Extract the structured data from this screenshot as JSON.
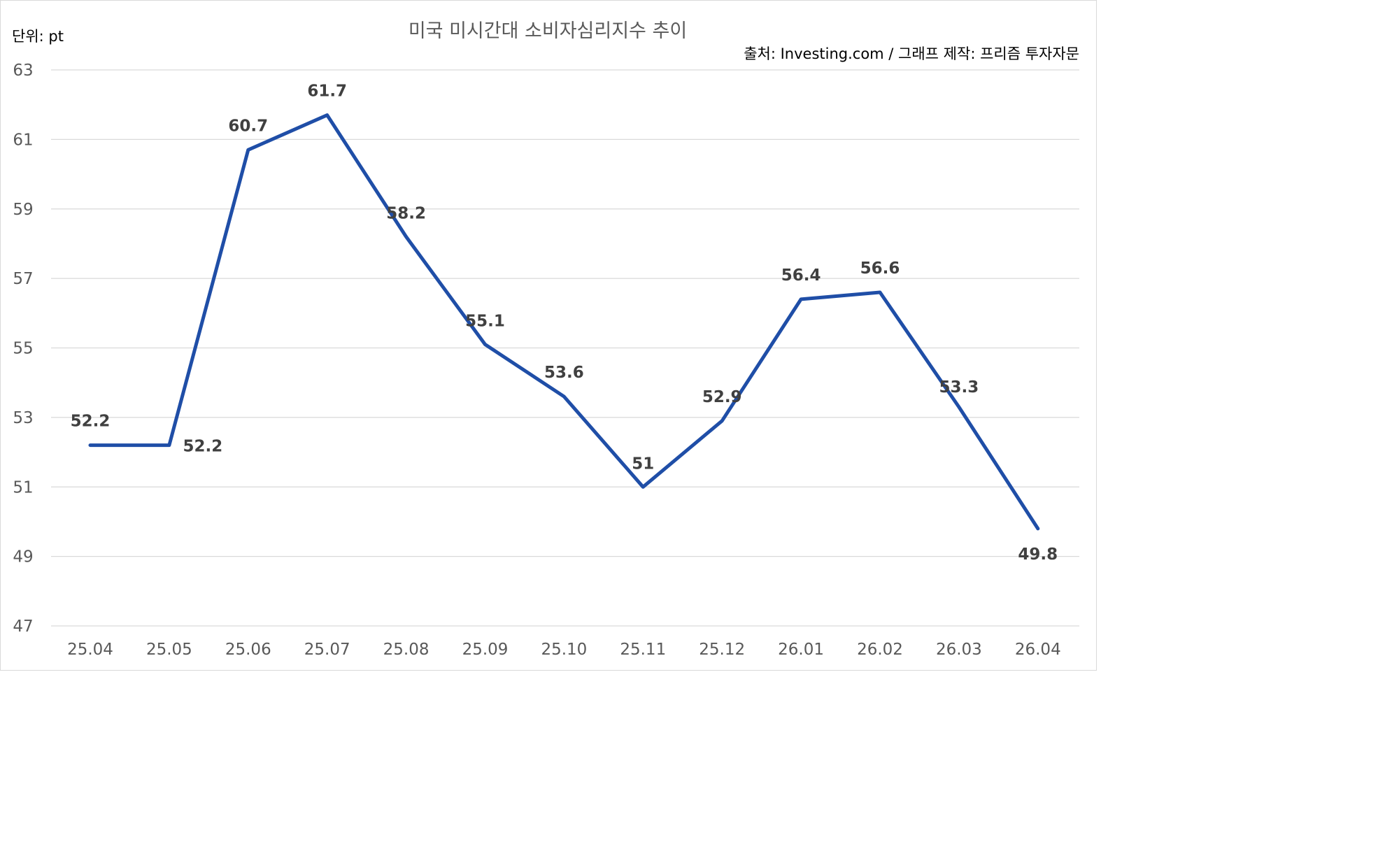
{
  "chart_data": {
    "type": "line",
    "title": "미국 미시간대 소비자심리지수 추이",
    "unit_label": "단위: pt",
    "source": "출처: Investing.com / 그래프 제작: 프리즘 투자자문",
    "categories": [
      "25.04",
      "25.05",
      "25.06",
      "25.07",
      "25.08",
      "25.09",
      "25.10",
      "25.11",
      "25.12",
      "26.01",
      "26.02",
      "26.03",
      "26.04"
    ],
    "series": [
      {
        "values": [
          52.2,
          52.2,
          60.7,
          61.7,
          58.2,
          55.1,
          53.6,
          51,
          52.9,
          56.4,
          56.6,
          53.3,
          49.8
        ]
      }
    ],
    "data_labels": [
      "52.2",
      "52.2",
      "60.7",
      "61.7",
      "58.2",
      "55.1",
      "53.6",
      "51",
      "52.9",
      "56.4",
      "56.6",
      "53.3",
      "49.8"
    ],
    "ylim": [
      47,
      63
    ],
    "yticks": [
      "47",
      "49",
      "51",
      "53",
      "55",
      "57",
      "59",
      "61",
      "63"
    ],
    "grid": true,
    "legend": "none",
    "line_color": "#1f4ea7"
  }
}
